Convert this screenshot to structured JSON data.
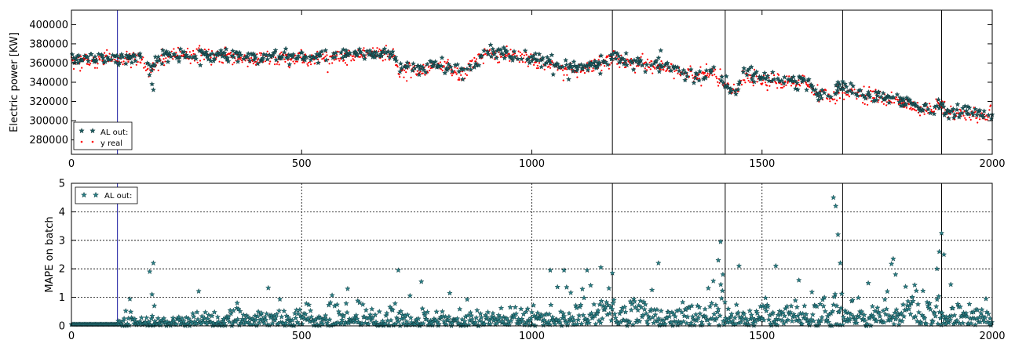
{
  "chart_data": [
    {
      "type": "scatter",
      "title": "",
      "xlabel": "",
      "ylabel": "Electric power [KW]",
      "xlim": [
        0,
        2000
      ],
      "ylim": [
        265000,
        415000
      ],
      "xticks": [
        "0",
        "500",
        "1000",
        "1500",
        "2000"
      ],
      "yticks": [
        "280000",
        "300000",
        "320000",
        "340000",
        "360000",
        "380000",
        "400000"
      ],
      "grid": false,
      "legend_position": "lower-left",
      "vlines": [
        100,
        1175,
        1420,
        1675,
        1890
      ],
      "series": [
        {
          "name": "AL out:",
          "marker": "star",
          "color": "#1c5a5e",
          "approx_curve": [
            [
              0,
              364000
            ],
            [
              100,
              364000
            ],
            [
              150,
              366000
            ],
            [
              170,
              355000
            ],
            [
              200,
              368000
            ],
            [
              300,
              370000
            ],
            [
              400,
              365000
            ],
            [
              500,
              367000
            ],
            [
              600,
              368000
            ],
            [
              700,
              371000
            ],
            [
              710,
              355000
            ],
            [
              800,
              358000
            ],
            [
              850,
              350000
            ],
            [
              900,
              372000
            ],
            [
              1000,
              366000
            ],
            [
              1050,
              358000
            ],
            [
              1100,
              355000
            ],
            [
              1175,
              366000
            ],
            [
              1200,
              362000
            ],
            [
              1300,
              356000
            ],
            [
              1350,
              348000
            ],
            [
              1400,
              350000
            ],
            [
              1420,
              338000
            ],
            [
              1440,
              330000
            ],
            [
              1460,
              348000
            ],
            [
              1500,
              345000
            ],
            [
              1600,
              340000
            ],
            [
              1620,
              328000
            ],
            [
              1650,
              326000
            ],
            [
              1675,
              335000
            ],
            [
              1700,
              330000
            ],
            [
              1800,
              322000
            ],
            [
              1850,
              313000
            ],
            [
              1890,
              318000
            ],
            [
              1900,
              310000
            ],
            [
              2000,
              308000
            ]
          ]
        },
        {
          "name": "y real",
          "marker": "dot",
          "color": "#ff0000",
          "approx_curve": [
            [
              0,
              362000
            ],
            [
              100,
              364000
            ],
            [
              150,
              365000
            ],
            [
              170,
              350000
            ],
            [
              200,
              367000
            ],
            [
              300,
              369000
            ],
            [
              400,
              364000
            ],
            [
              500,
              366000
            ],
            [
              600,
              367000
            ],
            [
              700,
              370000
            ],
            [
              710,
              352000
            ],
            [
              800,
              357000
            ],
            [
              850,
              348000
            ],
            [
              900,
              371000
            ],
            [
              1000,
              365000
            ],
            [
              1050,
              356000
            ],
            [
              1100,
              352000
            ],
            [
              1175,
              364000
            ],
            [
              1200,
              361000
            ],
            [
              1300,
              355000
            ],
            [
              1350,
              346000
            ],
            [
              1400,
              348000
            ],
            [
              1420,
              335000
            ],
            [
              1440,
              328000
            ],
            [
              1460,
              346000
            ],
            [
              1500,
              343000
            ],
            [
              1600,
              338000
            ],
            [
              1620,
              326000
            ],
            [
              1650,
              324000
            ],
            [
              1675,
              333000
            ],
            [
              1700,
              329000
            ],
            [
              1800,
              320000
            ],
            [
              1850,
              311000
            ],
            [
              1890,
              316000
            ],
            [
              1900,
              308000
            ],
            [
              2000,
              306000
            ]
          ]
        }
      ]
    },
    {
      "type": "scatter",
      "title": "",
      "xlabel": "",
      "ylabel": "MAPE on batch",
      "xlim": [
        0,
        2000
      ],
      "ylim": [
        0,
        5
      ],
      "xticks": [
        "0",
        "500",
        "1000",
        "1500",
        "2000"
      ],
      "yticks": [
        "0",
        "1",
        "2",
        "3",
        "4",
        "5"
      ],
      "grid": true,
      "legend_position": "top-left",
      "vlines": [
        100,
        1175,
        1420,
        1675,
        1890
      ],
      "series": [
        {
          "name": "AL out:",
          "marker": "star",
          "color": "#2a7f86",
          "notable_points": [
            [
              170,
              1.9
            ],
            [
              175,
              1.1
            ],
            [
              178,
              2.2
            ],
            [
              180,
              0.7
            ],
            [
              360,
              0.8
            ],
            [
              600,
              1.3
            ],
            [
              710,
              1.95
            ],
            [
              760,
              1.55
            ],
            [
              1040,
              1.95
            ],
            [
              1070,
              1.95
            ],
            [
              1120,
              1.95
            ],
            [
              1150,
              2.05
            ],
            [
              1175,
              1.85
            ],
            [
              1275,
              2.2
            ],
            [
              1410,
              2.95
            ],
            [
              1405,
              2.3
            ],
            [
              1415,
              1.8
            ],
            [
              1450,
              2.1
            ],
            [
              1530,
              2.1
            ],
            [
              1580,
              1.6
            ],
            [
              1655,
              4.5
            ],
            [
              1660,
              4.2
            ],
            [
              1665,
              3.2
            ],
            [
              1670,
              2.2
            ],
            [
              1785,
              2.35
            ],
            [
              1790,
              1.8
            ],
            [
              1880,
              2.0
            ],
            [
              1885,
              2.6
            ],
            [
              1890,
              3.25
            ],
            [
              1895,
              2.5
            ],
            [
              1910,
              1.45
            ]
          ]
        }
      ]
    }
  ]
}
